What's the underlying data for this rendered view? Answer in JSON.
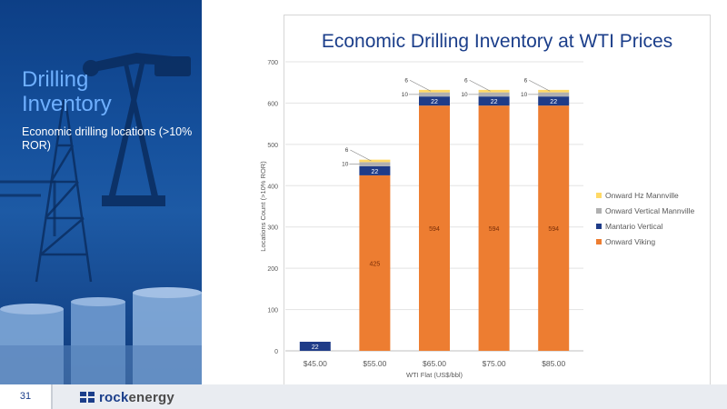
{
  "slide": {
    "title": "Drilling\nInventory",
    "subtitle": "Economic drilling locations (>10% ROR)",
    "page_number": "31",
    "logo": {
      "brand_part1": "rock",
      "brand_part2": "energy",
      "icon": "rockenergy-logo-mark"
    },
    "colors": {
      "panel": "#15509c",
      "title_accent": "#6fb0ff",
      "chart_title": "#1b3e8a"
    }
  },
  "chart_data": {
    "type": "bar",
    "stacked": true,
    "title": "Economic Drilling Inventory at WTI Prices",
    "xlabel": "WTI Flat (US$/bbl)",
    "ylabel": "Locations Count (>10% ROR)",
    "ylim": [
      0,
      700
    ],
    "yticks": [
      0,
      100,
      200,
      300,
      400,
      500,
      600,
      700
    ],
    "categories": [
      "$45.00",
      "$55.00",
      "$65.00",
      "$75.00",
      "$85.00"
    ],
    "grid": true,
    "legend_position": "right",
    "series": [
      {
        "name": "Onward Viking",
        "color": "#ed7d31",
        "values": [
          0,
          425,
          594,
          594,
          594
        ],
        "labels": [
          "",
          "425",
          "594",
          "594",
          "594"
        ]
      },
      {
        "name": "Mantario Vertical",
        "color": "#1f3c88",
        "values": [
          22,
          22,
          22,
          22,
          22
        ],
        "labels": [
          "22",
          "22",
          "22",
          "22",
          "22"
        ]
      },
      {
        "name": "Onward Vertical Mannville",
        "color": "#b0b0b0",
        "values": [
          0,
          10,
          10,
          10,
          10
        ],
        "labels": [
          "",
          "10",
          "10",
          "10",
          "10"
        ]
      },
      {
        "name": "Onward Hz Mannville",
        "color": "#ffd966",
        "values": [
          0,
          6,
          6,
          6,
          6
        ],
        "labels": [
          "",
          "6",
          "6",
          "6",
          "6"
        ]
      }
    ],
    "legend_order": [
      "Onward Hz Mannville",
      "Onward Vertical Mannville",
      "Mantario Vertical",
      "Onward Viking"
    ]
  }
}
